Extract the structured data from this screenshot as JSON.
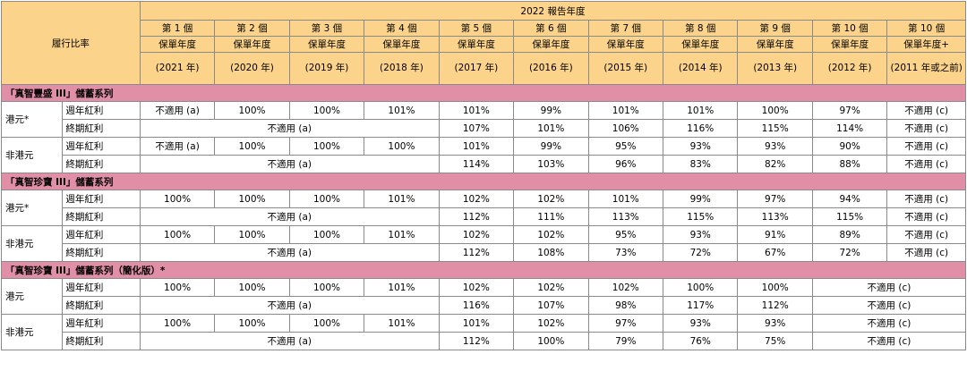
{
  "header": {
    "fulfillment_label": "履行比率",
    "report_year": "2022 報告年度",
    "columns": [
      {
        "year": "第 1 個",
        "type": "保單年度",
        "paren": "(2021 年)"
      },
      {
        "year": "第 2 個",
        "type": "保單年度",
        "paren": "(2020 年)"
      },
      {
        "year": "第 3 個",
        "type": "保單年度",
        "paren": "(2019 年)"
      },
      {
        "year": "第 4 個",
        "type": "保單年度",
        "paren": "(2018 年)"
      },
      {
        "year": "第 5 個",
        "type": "保單年度",
        "paren": "(2017 年)"
      },
      {
        "year": "第 6 個",
        "type": "保單年度",
        "paren": "(2016 年)"
      },
      {
        "year": "第 7 個",
        "type": "保單年度",
        "paren": "(2015 年)"
      },
      {
        "year": "第 8 個",
        "type": "保單年度",
        "paren": "(2014 年)"
      },
      {
        "year": "第 9 個",
        "type": "保單年度",
        "paren": "(2013 年)"
      },
      {
        "year": "第 10 個",
        "type": "保單年度",
        "paren": "(2012 年)"
      },
      {
        "year": "第 10 個",
        "type": "保單年度+",
        "paren": "(2011 年或之前)"
      }
    ]
  },
  "labels": {
    "annual": "週年紅利",
    "terminal": "終期紅利",
    "na_a": "不適用 (a)",
    "na_c": "不適用 (c)"
  },
  "sections": [
    {
      "title": "「真智豐盛 III」儲蓄系列",
      "groups": [
        {
          "currency": "港元*",
          "annual": [
            "不適用 (a)",
            "100%",
            "100%",
            "101%",
            "101%",
            "99%",
            "101%",
            "101%",
            "100%",
            "97%",
            "不適用 (c)"
          ],
          "terminal": [
            "107%",
            "101%",
            "106%",
            "116%",
            "115%",
            "114%",
            "不適用 (c)"
          ]
        },
        {
          "currency": "非港元",
          "annual": [
            "不適用 (a)",
            "100%",
            "100%",
            "100%",
            "101%",
            "99%",
            "95%",
            "93%",
            "93%",
            "90%",
            "不適用 (c)"
          ],
          "terminal": [
            "114%",
            "103%",
            "96%",
            "83%",
            "82%",
            "88%",
            "不適用 (c)"
          ]
        }
      ]
    },
    {
      "title": "「真智珍寶 III」儲蓄系列",
      "groups": [
        {
          "currency": "港元*",
          "annual": [
            "100%",
            "100%",
            "100%",
            "101%",
            "102%",
            "102%",
            "101%",
            "99%",
            "97%",
            "94%",
            "不適用 (c)"
          ],
          "terminal": [
            "112%",
            "111%",
            "113%",
            "115%",
            "113%",
            "115%",
            "不適用 (c)"
          ]
        },
        {
          "currency": "非港元",
          "annual": [
            "100%",
            "100%",
            "100%",
            "101%",
            "102%",
            "102%",
            "95%",
            "93%",
            "91%",
            "89%",
            "不適用 (c)"
          ],
          "terminal": [
            "112%",
            "108%",
            "73%",
            "72%",
            "67%",
            "72%",
            "不適用 (c)"
          ]
        }
      ]
    },
    {
      "title": "「真智珍寶 III」儲蓄系列（簡化版）*",
      "groups": [
        {
          "currency": "港元",
          "annual": [
            "100%",
            "100%",
            "100%",
            "101%",
            "102%",
            "102%",
            "102%",
            "100%",
            "100%"
          ],
          "terminal": [
            "116%",
            "107%",
            "98%",
            "117%",
            "112%"
          ]
        },
        {
          "currency": "非港元",
          "annual": [
            "100%",
            "100%",
            "100%",
            "101%",
            "101%",
            "102%",
            "97%",
            "93%",
            "93%"
          ],
          "terminal": [
            "112%",
            "100%",
            "79%",
            "76%",
            "75%"
          ]
        }
      ]
    }
  ]
}
